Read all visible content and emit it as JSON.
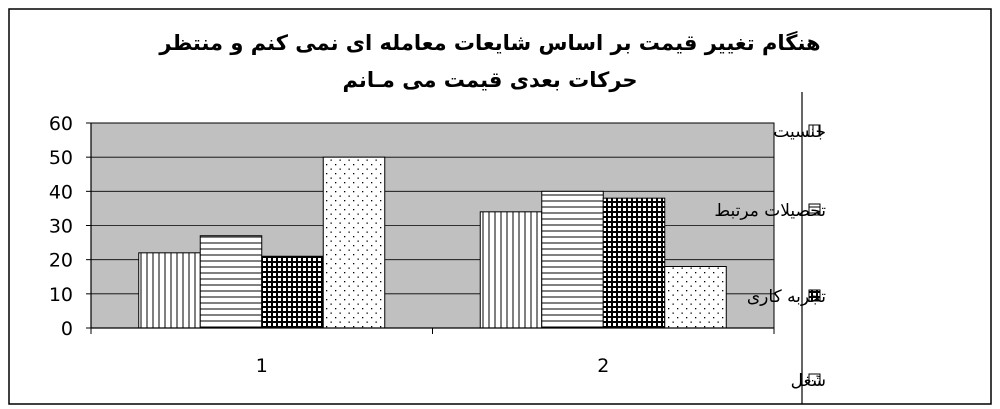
{
  "chart_data": {
    "type": "bar",
    "title": "هنگام تغيير قيمت بر اساس شايعات معامله ای نمی کنم و منتظر حرکات بعدی قيمت می مـانم",
    "title_lines": [
      "هنگام تغيير قيمت بر اساس شايعات معامله ای نمی کنم و منتظر",
      "حرکات بعدی قيمت می مـانم"
    ],
    "categories": [
      "1",
      "2"
    ],
    "series": [
      {
        "name": "جنسيت",
        "values": [
          22,
          34
        ],
        "pattern": "vertical"
      },
      {
        "name": "تحصيلات مرتبط",
        "values": [
          27,
          40
        ],
        "pattern": "horizontal"
      },
      {
        "name": "تجربه کاری",
        "values": [
          21,
          38
        ],
        "pattern": "grid"
      },
      {
        "name": "شغل",
        "values": [
          50,
          18
        ],
        "pattern": "dots"
      }
    ],
    "yticks": [
      "0",
      "10",
      "20",
      "30",
      "40",
      "50",
      "60"
    ],
    "ylim": [
      0,
      60
    ],
    "grid": true,
    "legend_position": "right",
    "colors": {
      "plot_background": "#c0c0c0",
      "bar_fill": "#ffffff",
      "line": "#000000"
    }
  }
}
